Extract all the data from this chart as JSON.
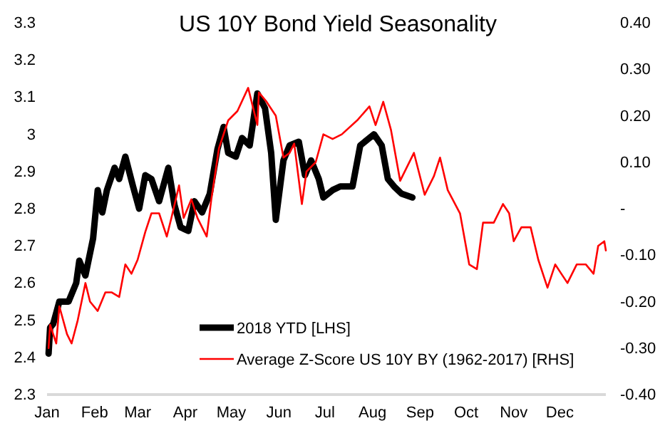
{
  "chart_data": {
    "type": "line",
    "title": "US 10Y Bond Yield Seasonality",
    "xlim": [
      "--01-01",
      "--12-31"
    ],
    "xticks": [
      {
        "value": "--01-01",
        "label": "Jan"
      },
      {
        "value": "--02-01",
        "label": "Feb"
      },
      {
        "value": "--03-01",
        "label": "Mar"
      },
      {
        "value": "--04-01",
        "label": "Apr"
      },
      {
        "value": "--05-01",
        "label": "May"
      },
      {
        "value": "--06-01",
        "label": "Jun"
      },
      {
        "value": "--07-01",
        "label": "Jul"
      },
      {
        "value": "--08-01",
        "label": "Aug"
      },
      {
        "value": "--09-01",
        "label": "Sep"
      },
      {
        "value": "--10-01",
        "label": "Oct"
      },
      {
        "value": "--11-01",
        "label": "Nov"
      },
      {
        "value": "--12-01",
        "label": "Dec"
      }
    ],
    "ylim": [
      2.3,
      3.3
    ],
    "yticks": [
      2.3,
      2.4,
      2.5,
      2.6,
      2.7,
      2.8,
      2.9,
      3,
      3.1,
      3.2,
      3.3
    ],
    "y2lim": [
      -0.4,
      0.4
    ],
    "y2ticks": [
      {
        "value": -0.4,
        "label": "-0.40"
      },
      {
        "value": -0.3,
        "label": "-0.30"
      },
      {
        "value": -0.2,
        "label": "-0.20"
      },
      {
        "value": -0.1,
        "label": "-0.10"
      },
      {
        "value": 0,
        "label": "-"
      },
      {
        "value": 0.1,
        "label": "0.10"
      },
      {
        "value": 0.2,
        "label": "0.20"
      },
      {
        "value": 0.3,
        "label": "0.30"
      },
      {
        "value": 0.4,
        "label": "0.40"
      }
    ],
    "grid": false,
    "legend": "bottom",
    "marker": "none",
    "line_style": "solid",
    "series": [
      {
        "name": "2018 YTD [LHS]",
        "color": "#000000",
        "axis": "y",
        "x": [
          "--01-02",
          "--01-03",
          "--01-05",
          "--01-09",
          "--01-15",
          "--01-20",
          "--01-22",
          "--01-26",
          "--01-31",
          "--02-03",
          "--02-06",
          "--02-09",
          "--02-14",
          "--02-17",
          "--02-21",
          "--02-26",
          "--03-02",
          "--03-06",
          "--03-10",
          "--03-15",
          "--03-21",
          "--03-25",
          "--03-29",
          "--04-03",
          "--04-07",
          "--04-12",
          "--04-17",
          "--04-22",
          "--04-26",
          "--04-29",
          "--05-04",
          "--05-08",
          "--05-13",
          "--05-18",
          "--05-23",
          "--05-27",
          "--05-30",
          "--06-04",
          "--06-08",
          "--06-14",
          "--06-18",
          "--06-22",
          "--06-27",
          "--06-30",
          "--07-06",
          "--07-11",
          "--07-19",
          "--07-24",
          "--08-02",
          "--08-07",
          "--08-11",
          "--08-15",
          "--08-20",
          "--08-27"
        ],
        "values": [
          2.41,
          2.48,
          2.49,
          2.55,
          2.55,
          2.6,
          2.66,
          2.62,
          2.72,
          2.85,
          2.79,
          2.85,
          2.91,
          2.88,
          2.94,
          2.86,
          2.8,
          2.89,
          2.88,
          2.82,
          2.91,
          2.81,
          2.75,
          2.74,
          2.82,
          2.79,
          2.84,
          2.96,
          3.02,
          2.95,
          2.94,
          2.99,
          2.97,
          3.11,
          3.07,
          2.95,
          2.77,
          2.93,
          2.97,
          2.98,
          2.89,
          2.93,
          2.88,
          2.83,
          2.85,
          2.86,
          2.86,
          2.97,
          3.0,
          2.97,
          2.88,
          2.86,
          2.84,
          2.83
        ]
      },
      {
        "name": "Average Z-Score US 10Y BY (1962-2017) [RHS]",
        "color": "#ff0000",
        "axis": "y2",
        "x": [
          "--01-02",
          "--01-03",
          "--01-07",
          "--01-09",
          "--01-14",
          "--01-17",
          "--01-21",
          "--01-26",
          "--01-29",
          "--02-03",
          "--02-08",
          "--02-12",
          "--02-17",
          "--02-21",
          "--02-25",
          "--03-01",
          "--03-06",
          "--03-10",
          "--03-15",
          "--03-20",
          "--03-23",
          "--03-28",
          "--03-31",
          "--04-05",
          "--04-09",
          "--04-15",
          "--04-18",
          "--04-23",
          "--04-29",
          "--05-05",
          "--05-12",
          "--05-18",
          "--05-19",
          "--05-24",
          "--05-30",
          "--06-04",
          "--06-08",
          "--06-11",
          "--06-16",
          "--06-19",
          "--06-25",
          "--06-30",
          "--07-06",
          "--07-12",
          "--07-22",
          "--07-30",
          "--08-03",
          "--08-08",
          "--08-13",
          "--08-19",
          "--08-28",
          "--09-04",
          "--09-10",
          "--09-14",
          "--09-19",
          "--09-27",
          "--10-03",
          "--10-08",
          "--10-12",
          "--10-19",
          "--10-25",
          "--10-29",
          "--11-01",
          "--11-06",
          "--11-12",
          "--11-17",
          "--11-23",
          "--11-28",
          "--12-02",
          "--12-06",
          "--12-12",
          "--12-18",
          "--12-23",
          "--12-26",
          "--12-30",
          "--12-31"
        ],
        "values": [
          -0.3,
          -0.25,
          -0.29,
          -0.21,
          -0.27,
          -0.29,
          -0.24,
          -0.16,
          -0.2,
          -0.22,
          -0.18,
          -0.18,
          -0.19,
          -0.12,
          -0.14,
          -0.11,
          -0.05,
          -0.01,
          -0.01,
          -0.06,
          -0.02,
          0.05,
          -0.02,
          0.02,
          -0.02,
          -0.06,
          0.02,
          0.13,
          0.19,
          0.21,
          0.26,
          0.18,
          0.25,
          0.23,
          0.2,
          0.11,
          0.12,
          0.14,
          0.01,
          0.08,
          0.1,
          0.16,
          0.15,
          0.16,
          0.19,
          0.22,
          0.18,
          0.23,
          0.17,
          0.06,
          0.12,
          0.03,
          0.07,
          0.11,
          0.04,
          -0.01,
          -0.12,
          -0.13,
          -0.03,
          -0.03,
          0.01,
          -0.01,
          -0.07,
          -0.04,
          -0.04,
          -0.11,
          -0.17,
          -0.12,
          -0.14,
          -0.16,
          -0.12,
          -0.12,
          -0.14,
          -0.08,
          -0.07,
          -0.09
        ]
      }
    ]
  }
}
